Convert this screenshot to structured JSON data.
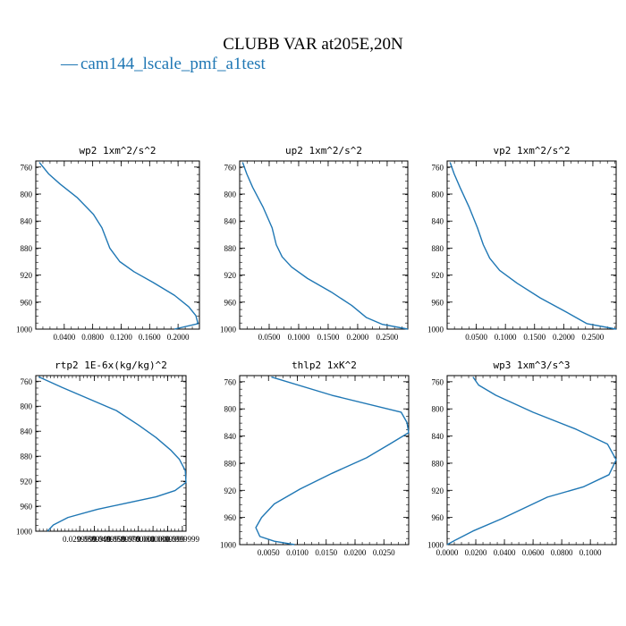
{
  "figure": {
    "title": "CLUBB VAR at205E,20N",
    "legend_label": "cam144_lscale_pmf_a1test",
    "legend_symbol": "—",
    "line_color": "#1f77b4"
  },
  "chart_data": [
    {
      "type": "line",
      "title": "wp2  1xm^2/s^2",
      "xlim": [
        0.0,
        0.23
      ],
      "ylim": [
        1000,
        751
      ],
      "yticks": [
        760,
        800,
        840,
        880,
        920,
        960,
        1000
      ],
      "xticks": [
        0.04,
        0.08,
        0.12,
        0.16,
        0.2
      ],
      "xtick_labels": [
        "0.0400",
        "0.0800",
        "0.1200",
        "0.1600",
        "0.2000"
      ],
      "series": [
        {
          "x": [
            0.005,
            0.018,
            0.034,
            0.058,
            0.081,
            0.093,
            0.104,
            0.118,
            0.138,
            0.165,
            0.195,
            0.215,
            0.225,
            0.228,
            0.195
          ],
          "y": [
            753,
            770,
            785,
            805,
            830,
            850,
            880,
            900,
            915,
            931,
            950,
            967,
            980,
            992,
            1000
          ]
        }
      ]
    },
    {
      "type": "line",
      "title": "up2  1xm^2/s^2",
      "xlim": [
        0.0,
        0.285
      ],
      "ylim": [
        1000,
        751
      ],
      "yticks": [
        760,
        800,
        840,
        880,
        920,
        960,
        1000
      ],
      "xticks": [
        0.05,
        0.1,
        0.15,
        0.2,
        0.25
      ],
      "xtick_labels": [
        "0.0500",
        "0.1000",
        "0.1500",
        "0.2000",
        "0.2500"
      ],
      "series": [
        {
          "x": [
            0.005,
            0.012,
            0.022,
            0.04,
            0.055,
            0.062,
            0.072,
            0.088,
            0.115,
            0.155,
            0.19,
            0.215,
            0.242,
            0.285
          ],
          "y": [
            753,
            770,
            790,
            820,
            850,
            875,
            893,
            908,
            925,
            945,
            965,
            983,
            993,
            1000
          ]
        }
      ]
    },
    {
      "type": "line",
      "title": "vp2  1xm^2/s^2",
      "xlim": [
        0.0,
        0.29
      ],
      "ylim": [
        1000,
        751
      ],
      "yticks": [
        760,
        800,
        840,
        880,
        920,
        960,
        1000
      ],
      "xticks": [
        0.05,
        0.1,
        0.15,
        0.2,
        0.25
      ],
      "xtick_labels": [
        "0.0500",
        "0.1000",
        "0.1500",
        "0.2000",
        "0.2500"
      ],
      "series": [
        {
          "x": [
            0.005,
            0.012,
            0.022,
            0.038,
            0.052,
            0.062,
            0.073,
            0.09,
            0.12,
            0.16,
            0.205,
            0.24,
            0.29
          ],
          "y": [
            753,
            770,
            790,
            820,
            850,
            875,
            895,
            913,
            932,
            954,
            975,
            992,
            1000
          ]
        }
      ]
    },
    {
      "type": "line",
      "title": "rtp2  1E-6x(kg/kg)^2",
      "xlim": [
        0.0,
        0.1025
      ],
      "ylim": [
        1000,
        751
      ],
      "yticks": [
        760,
        800,
        840,
        880,
        920,
        960,
        1000
      ],
      "xticks": [
        0.03,
        0.04,
        0.05,
        0.06,
        0.07,
        0.08,
        0.09,
        0.1
      ],
      "xtick_labels": [
        "0.0299999",
        "0.0399999",
        "0.0499999",
        "0.0599999",
        "0.0700000",
        "0.0800000",
        "0.0899999",
        "0.0999999"
      ],
      "series": [
        {
          "x": [
            0.002,
            0.018,
            0.038,
            0.055,
            0.07,
            0.082,
            0.092,
            0.098,
            0.102,
            0.1025,
            0.095,
            0.082,
            0.062,
            0.042,
            0.022,
            0.012,
            0.008
          ],
          "y": [
            753,
            770,
            790,
            807,
            830,
            850,
            870,
            885,
            903,
            922,
            935,
            945,
            955,
            965,
            978,
            990,
            1000
          ]
        }
      ]
    },
    {
      "type": "line",
      "title": "thlp2  1xK^2",
      "xlim": [
        0.0,
        0.0293
      ],
      "ylim": [
        1000,
        751
      ],
      "yticks": [
        760,
        800,
        840,
        880,
        920,
        960,
        1000
      ],
      "xticks": [
        0.005,
        0.01,
        0.015,
        0.02,
        0.025
      ],
      "xtick_labels": [
        "0.0050",
        "0.0100",
        "0.0150",
        "0.0200",
        "0.0250"
      ],
      "series": [
        {
          "x": [
            0.0055,
            0.016,
            0.028,
            0.029,
            0.0293,
            0.026,
            0.022,
            0.016,
            0.0105,
            0.006,
            0.0038,
            0.0028,
            0.0035,
            0.006,
            0.0095
          ],
          "y": [
            753,
            780,
            805,
            820,
            835,
            852,
            872,
            895,
            918,
            940,
            960,
            975,
            988,
            995,
            1000
          ]
        }
      ]
    },
    {
      "type": "line",
      "title": "wp3  1xm^3/s^3",
      "xlim": [
        0.0,
        0.118
      ],
      "ylim": [
        1000,
        751
      ],
      "yticks": [
        760,
        800,
        840,
        880,
        920,
        960,
        1000
      ],
      "xticks": [
        0.0,
        0.02,
        0.04,
        0.06,
        0.08,
        0.1
      ],
      "xtick_labels": [
        "0.0000",
        "0.0200",
        "0.0400",
        "0.0600",
        "0.0800",
        "0.1000"
      ],
      "series": [
        {
          "x": [
            0.018,
            0.022,
            0.034,
            0.06,
            0.09,
            0.112,
            0.118,
            0.113,
            0.095,
            0.07,
            0.055,
            0.038,
            0.018,
            0.006,
            0.0
          ],
          "y": [
            753,
            765,
            780,
            805,
            830,
            852,
            875,
            897,
            915,
            930,
            945,
            962,
            980,
            993,
            1000
          ]
        }
      ]
    }
  ]
}
